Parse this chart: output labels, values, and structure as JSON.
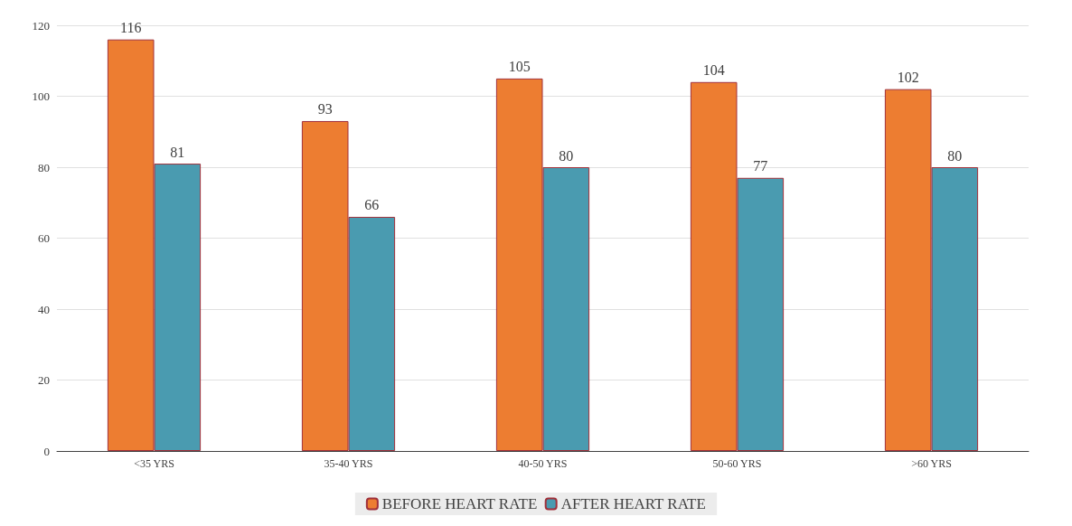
{
  "chart_data": {
    "type": "bar",
    "categories": [
      "<35 YRS",
      "35-40 YRS",
      "40-50 YRS",
      "50-60 YRS",
      ">60 YRS"
    ],
    "series": [
      {
        "name": "BEFORE HEART RATE",
        "color": "#ed7d31",
        "values": [
          116,
          93,
          105,
          104,
          102
        ]
      },
      {
        "name": "AFTER HEART RATE",
        "color": "#4a9bb0",
        "values": [
          81,
          66,
          80,
          77,
          80
        ]
      }
    ],
    "ylim": [
      0,
      120
    ],
    "yticks": [
      0,
      20,
      40,
      60,
      80,
      100,
      120
    ],
    "grid": "y",
    "legend": "bottom",
    "data_labels": true
  }
}
